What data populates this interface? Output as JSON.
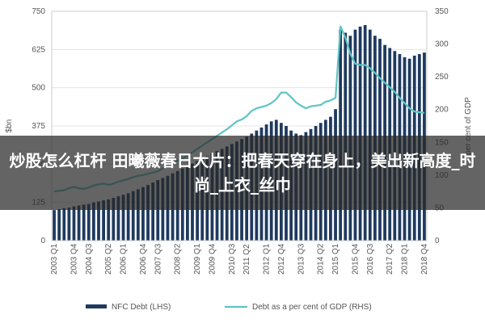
{
  "chart_data": {
    "type": "bar+line",
    "ylabel_left": "$bn",
    "ylabel_right": "per cent of GDP",
    "ylim_left": [
      0,
      750
    ],
    "ylim_right": [
      0,
      350
    ],
    "yticks_left": [
      "0",
      "125",
      "250",
      "375",
      "500",
      "625",
      "750"
    ],
    "yticks_right": [
      "0",
      "50",
      "100",
      "150",
      "200",
      "250",
      "300",
      "350"
    ],
    "xtick_labels": [
      "2003 Q1",
      "2003 Q4",
      "2004 Q3",
      "2005 Q2",
      "2006 Q1",
      "2006 Q4",
      "2007 Q3",
      "2008 Q2",
      "2009 Q1",
      "2009 Q4",
      "2010 Q3",
      "2011 Q2",
      "2012 Q1",
      "2012 Q4",
      "2013 Q3",
      "2014 Q2",
      "2015 Q1",
      "2015 Q4",
      "2016 Q3",
      "2017 Q2",
      "2018 Q1",
      "2018 Q4"
    ],
    "series": [
      {
        "name": "NFC Debt (LHS)",
        "axis": "left",
        "color": "#1f3a5f",
        "values": [
          100,
          103,
          106,
          108,
          112,
          115,
          118,
          120,
          125,
          128,
          132,
          135,
          140,
          145,
          150,
          155,
          162,
          168,
          175,
          182,
          190,
          198,
          205,
          212,
          220,
          228,
          236,
          245,
          252,
          260,
          268,
          276,
          285,
          293,
          300,
          308,
          316,
          324,
          332,
          340,
          350,
          360,
          370,
          380,
          390,
          395,
          385,
          375,
          360,
          350,
          345,
          355,
          365,
          375,
          385,
          395,
          405,
          430,
          690,
          680,
          670,
          690,
          700,
          705,
          690,
          670,
          660,
          640,
          630,
          620,
          610,
          600,
          595,
          605,
          610,
          615
        ]
      },
      {
        "name": "Debt as a per cent of GDP (RHS)",
        "axis": "right",
        "color": "#5fc4c6",
        "values": [
          75,
          76,
          77,
          80,
          82,
          80,
          79,
          81,
          84,
          86,
          87,
          85,
          87,
          90,
          92,
          94,
          97,
          99,
          100,
          102,
          104,
          106,
          110,
          114,
          118,
          122,
          125,
          130,
          135,
          140,
          145,
          150,
          155,
          160,
          165,
          170,
          176,
          182,
          185,
          190,
          198,
          202,
          204,
          206,
          210,
          216,
          226,
          226,
          219,
          211,
          206,
          202,
          205,
          206,
          207,
          212,
          214,
          218,
          327,
          310,
          285,
          270,
          268,
          268,
          263,
          256,
          248,
          241,
          234,
          227,
          218,
          210,
          202,
          197,
          196,
          195
        ]
      }
    ]
  },
  "overlay": {
    "title": "炒股怎么杠杆 田曦薇春日大片：把春天穿在身上，美出新高度_时尚_上衣_丝巾"
  }
}
